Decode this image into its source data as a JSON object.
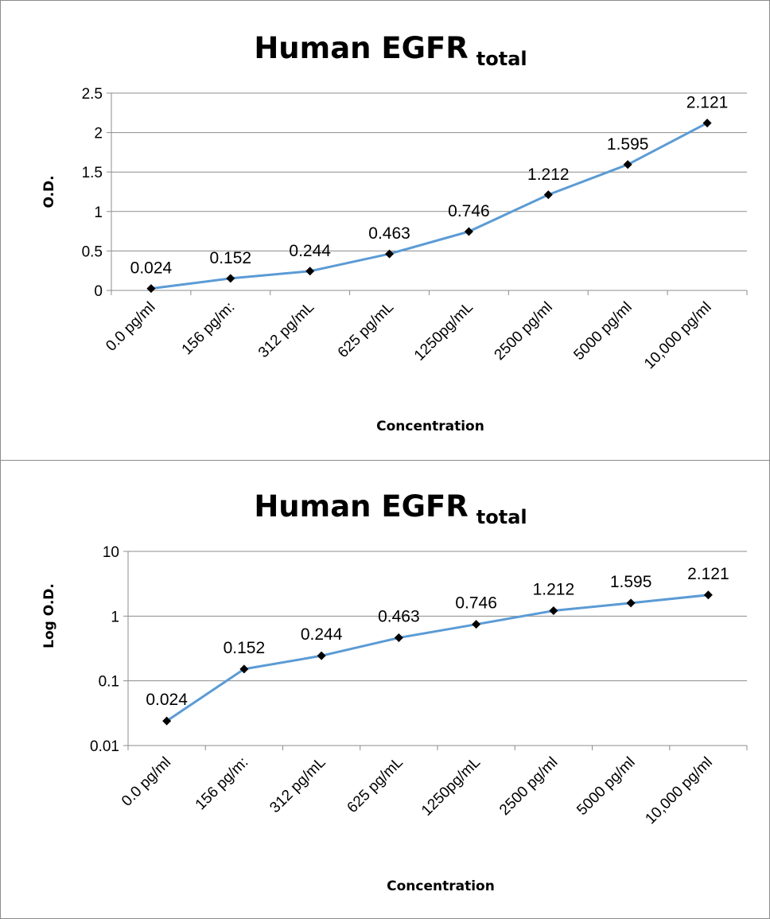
{
  "chart_data": [
    {
      "type": "line",
      "title": "Human EGFR",
      "title_subscript": "total",
      "xlabel": "Concentration",
      "ylabel": "O.D.",
      "categories": [
        "0.0 pg/ml",
        "156 pg/m:",
        "312 pg/mL",
        "625 pg/mL",
        "1250pg/mL",
        "2500 pg/ml",
        "5000 pg/ml",
        "10,000 pg/ml"
      ],
      "values": [
        0.024,
        0.152,
        0.244,
        0.463,
        0.746,
        1.212,
        1.595,
        2.121
      ],
      "data_labels": [
        "0.024",
        "0.152",
        "0.244",
        "0.463",
        "0.746",
        "1.212",
        "1.595",
        "2.121"
      ],
      "y_scale": "linear",
      "ylim": [
        0,
        2.5
      ],
      "y_ticks": [
        0,
        0.5,
        1,
        1.5,
        2,
        2.5
      ],
      "y_tick_labels": [
        "0",
        "0.5",
        "1",
        "1.5",
        "2",
        "2.5"
      ],
      "grid": true,
      "legend": "none",
      "line_color": "#5b9bd5",
      "marker_color": "#000000",
      "grid_color": "#8c8c8c"
    },
    {
      "type": "line",
      "title": "Human EGFR",
      "title_subscript": "total",
      "xlabel": "Concentration",
      "ylabel": "Log O.D.",
      "categories": [
        "0.0 pg/ml",
        "156 pg/m:",
        "312 pg/mL",
        "625 pg/mL",
        "1250pg/mL",
        "2500 pg/ml",
        "5000 pg/ml",
        "10,000 pg/ml"
      ],
      "values": [
        0.024,
        0.152,
        0.244,
        0.463,
        0.746,
        1.212,
        1.595,
        2.121
      ],
      "data_labels": [
        "0.024",
        "0.152",
        "0.244",
        "0.463",
        "0.746",
        "1.212",
        "1.595",
        "2.121"
      ],
      "y_scale": "log",
      "ylim": [
        0.01,
        10
      ],
      "y_ticks": [
        0.01,
        0.1,
        1,
        10
      ],
      "y_tick_labels": [
        "0.01",
        "0.1",
        "1",
        "10"
      ],
      "grid": true,
      "legend": "none",
      "line_color": "#5b9bd5",
      "marker_color": "#000000",
      "grid_color": "#8c8c8c"
    }
  ]
}
